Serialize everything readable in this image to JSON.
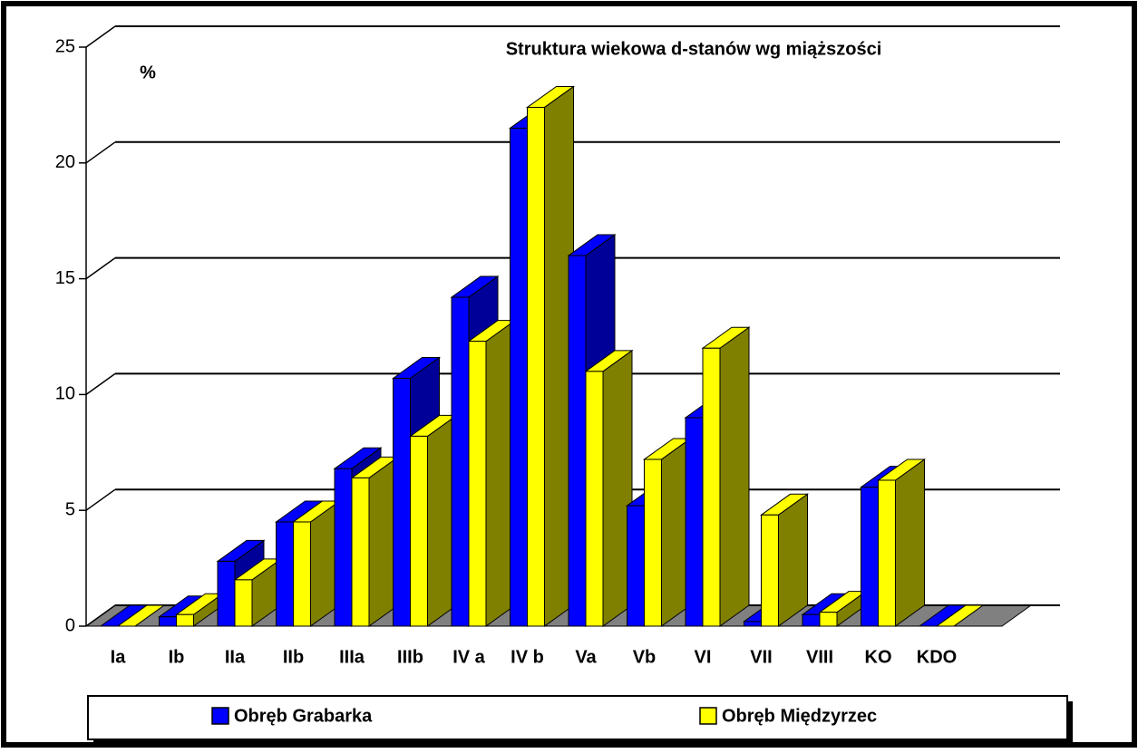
{
  "chart_data": {
    "type": "bar3d",
    "title": "Struktura wiekowa d-stanów wg miąższości",
    "y_label": "%",
    "categories": [
      "Ia",
      "Ib",
      "IIa",
      "IIb",
      "IIIa",
      "IIIb",
      "IV a",
      "IV b",
      "Va",
      "Vb",
      "VI",
      "VII",
      "VIII",
      "KO",
      "KDO"
    ],
    "series": [
      {
        "name": "Obręb Grabarka",
        "color": "#0000ff",
        "side": "#000099",
        "values": [
          0,
          0.4,
          2.8,
          4.5,
          6.8,
          10.7,
          14.2,
          21.5,
          16.0,
          5.2,
          9.0,
          0.2,
          0.5,
          6.0,
          0
        ]
      },
      {
        "name": "Obręb Międzyrzec",
        "color": "#ffff00",
        "side": "#808000",
        "values": [
          0,
          0.5,
          2.0,
          4.5,
          6.4,
          8.2,
          12.3,
          22.4,
          11.0,
          7.2,
          12.0,
          4.8,
          0.6,
          6.3,
          0
        ]
      }
    ],
    "ylim": [
      0,
      25
    ],
    "yticks": [
      0,
      5,
      10,
      15,
      20,
      25
    ],
    "grid": true
  }
}
